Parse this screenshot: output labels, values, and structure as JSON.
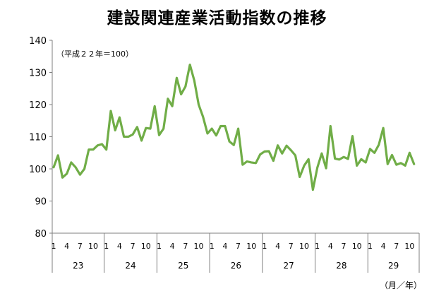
{
  "chart_data": {
    "type": "line",
    "title": "建設関連産業活動指数の推移",
    "note": "（平成２２年＝100）",
    "x_unit_label": "（月／年）",
    "ylim": [
      80,
      140
    ],
    "y_ticks": [
      80,
      90,
      100,
      110,
      120,
      130,
      140
    ],
    "month_ticks": [
      "1",
      "4",
      "7",
      "10"
    ],
    "years": [
      "23",
      "24",
      "25",
      "26",
      "27",
      "28",
      "29"
    ],
    "line_color": "#70AD47",
    "grid": false,
    "series": [
      {
        "values": [
          100.5,
          104.2,
          97.3,
          98.5,
          102.0,
          100.5,
          98.2,
          100.0,
          106.0,
          106.0,
          107.3,
          107.7,
          106.0,
          118.0,
          112.0,
          116.0,
          110.0,
          110.0,
          110.7,
          113.0,
          108.8,
          112.7,
          112.5,
          119.5,
          110.5,
          112.5,
          121.8,
          119.5,
          128.3,
          123.2,
          125.6,
          132.4,
          127.5,
          120.0,
          116.2,
          111.0,
          112.5,
          110.4,
          113.3,
          113.3,
          108.5,
          107.4,
          112.5,
          101.3,
          102.3,
          102.0,
          101.8,
          104.5,
          105.4,
          105.5,
          102.5,
          107.3,
          104.8,
          107.2,
          105.8,
          104.2,
          97.5,
          101.0,
          103.0,
          93.5,
          100.4,
          104.8,
          100.2,
          113.3,
          103.2,
          102.9,
          103.7,
          103.1,
          110.2,
          101.0,
          103.0,
          102.0,
          106.2,
          105.0,
          107.5,
          112.7,
          101.5,
          104.3,
          101.3,
          101.8,
          101.0,
          105.0,
          101.5
        ]
      }
    ]
  }
}
